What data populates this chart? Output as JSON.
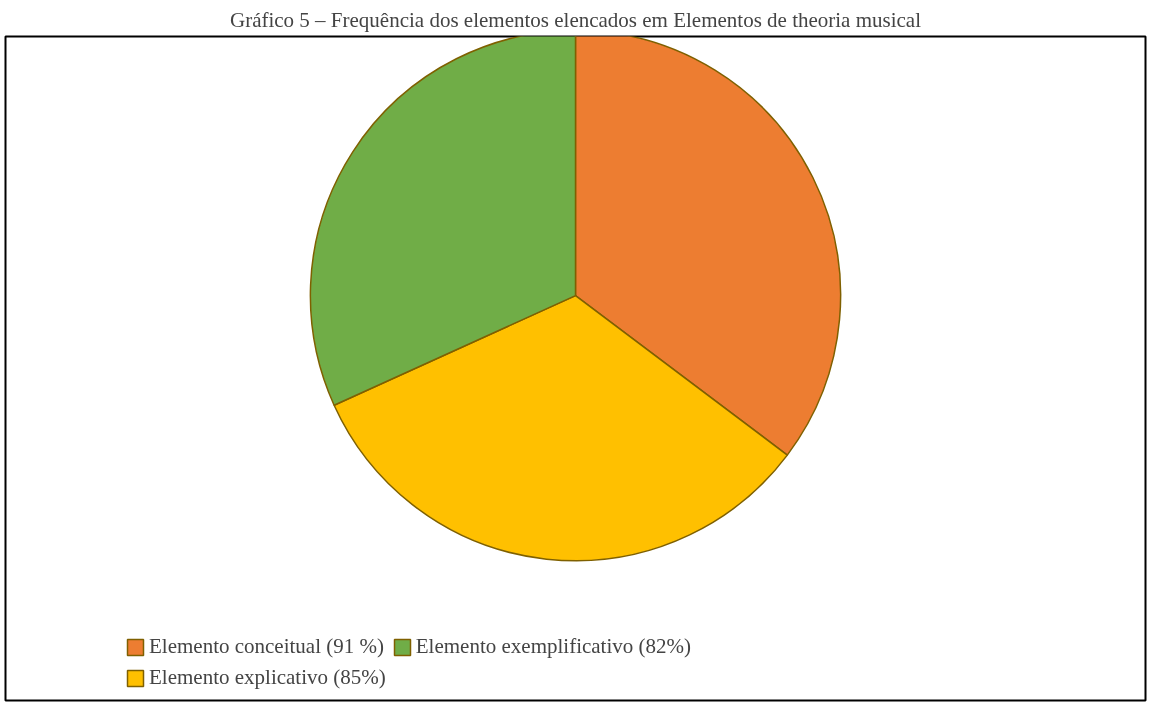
{
  "chart_data": {
    "type": "pie",
    "title": "Gráfico 5 – Frequência dos elementos elencados em Elementos de theoria musical",
    "categories": [
      "Elemento conceitual (91 %)",
      "Elemento explicativo (85%)",
      "Elemento exemplificativo (82%)"
    ],
    "values": [
      91,
      85,
      82
    ],
    "colors": [
      "#ed7d31",
      "#ffc000",
      "#70ad47"
    ],
    "legend": "bottom"
  }
}
